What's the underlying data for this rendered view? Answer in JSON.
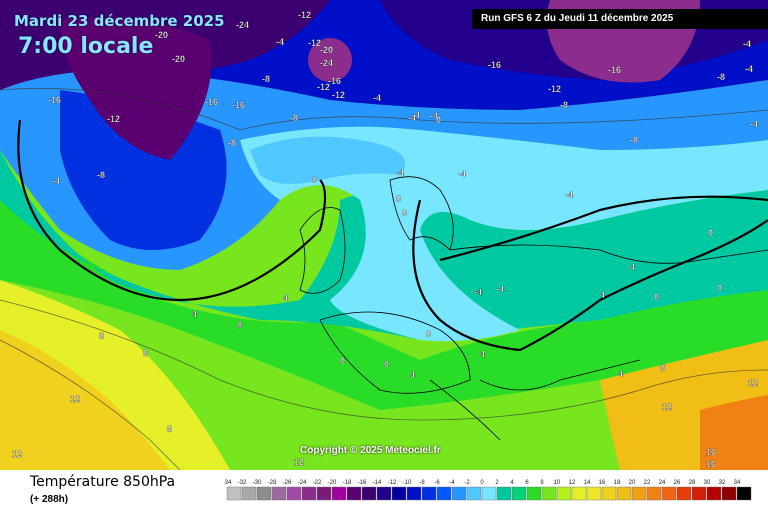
{
  "header": {
    "date": "Mardi 23 décembre 2025",
    "time": "7:00 locale",
    "run": "Run GFS 6 Z du Jeudi 11 décembre 2025"
  },
  "copyright": "Copyright © 2025 Meteociel.fr",
  "footer": {
    "variable": "Température 850hPa",
    "lead": "(+ 288h)"
  },
  "legend": {
    "labels": [
      "-34",
      "-32",
      "-30",
      "-28",
      "-26",
      "-24",
      "-22",
      "-20",
      "-18",
      "-16",
      "-14",
      "-12",
      "-10",
      "-8",
      "-6",
      "-4",
      "-2",
      "0",
      "2",
      "4",
      "6",
      "8",
      "10",
      "12",
      "14",
      "16",
      "18",
      "20",
      "22",
      "24",
      "26",
      "28",
      "30",
      "32",
      "34"
    ],
    "colors": [
      "#c0c0c0",
      "#a9a9a9",
      "#8c8c8c",
      "#9a6aa0",
      "#a04aa8",
      "#8c2c8c",
      "#7a1a7a",
      "#a000a0",
      "#5a0070",
      "#3c0070",
      "#22008c",
      "#0000a0",
      "#0010c8",
      "#0030e0",
      "#0058ff",
      "#2896ff",
      "#50c8ff",
      "#78e6ff",
      "#00c8a0",
      "#00d278",
      "#28dc28",
      "#78e61e",
      "#b4f01e",
      "#e6f028",
      "#f0e628",
      "#f0d21e",
      "#f0be14",
      "#f0a014",
      "#f08214",
      "#f06414",
      "#e63c0a",
      "#d21e0a",
      "#b40000",
      "#8c0000",
      "#000000"
    ]
  },
  "isotherm_labels": [
    {
      "t": "-20"
    },
    {
      "t": "-24"
    },
    {
      "t": "-20"
    },
    {
      "t": "-16"
    },
    {
      "t": "-16"
    },
    {
      "t": "-12"
    },
    {
      "t": "-8"
    },
    {
      "t": "-4"
    },
    {
      "t": "-8"
    },
    {
      "t": "-4"
    },
    {
      "t": "-12"
    },
    {
      "t": "-12"
    },
    {
      "t": "-16"
    },
    {
      "t": "-8"
    },
    {
      "t": "-20"
    },
    {
      "t": "-24"
    },
    {
      "t": "-16"
    },
    {
      "t": "-12"
    },
    {
      "t": "-12"
    },
    {
      "t": "-8"
    },
    {
      "t": "-4"
    },
    {
      "t": "-8"
    },
    {
      "t": "-4"
    },
    {
      "t": "-4"
    },
    {
      "t": "-4"
    },
    {
      "t": "0"
    },
    {
      "t": "0"
    },
    {
      "t": "0"
    },
    {
      "t": "-4"
    },
    {
      "t": "-4"
    },
    {
      "t": "-4"
    },
    {
      "t": "0"
    },
    {
      "t": "4"
    },
    {
      "t": "4"
    },
    {
      "t": "8"
    },
    {
      "t": "8"
    },
    {
      "t": "8"
    },
    {
      "t": "12"
    },
    {
      "t": "12"
    },
    {
      "t": "12"
    },
    {
      "t": "8"
    },
    {
      "t": "0"
    },
    {
      "t": "0"
    },
    {
      "t": "4"
    },
    {
      "t": "4"
    },
    {
      "t": "4"
    },
    {
      "t": "8"
    },
    {
      "t": "12"
    },
    {
      "t": "12"
    },
    {
      "t": "16"
    },
    {
      "t": "16"
    },
    {
      "t": "-16"
    },
    {
      "t": "-12"
    },
    {
      "t": "-8"
    },
    {
      "t": "-16"
    },
    {
      "t": "-8"
    },
    {
      "t": "-4"
    },
    {
      "t": "-4"
    },
    {
      "t": "-4"
    },
    {
      "t": "-4"
    },
    {
      "t": "0"
    },
    {
      "t": "0"
    },
    {
      "t": "4"
    },
    {
      "t": "4"
    },
    {
      "t": "-4"
    },
    {
      "t": "-4"
    },
    {
      "t": "0"
    },
    {
      "t": "0"
    }
  ]
}
